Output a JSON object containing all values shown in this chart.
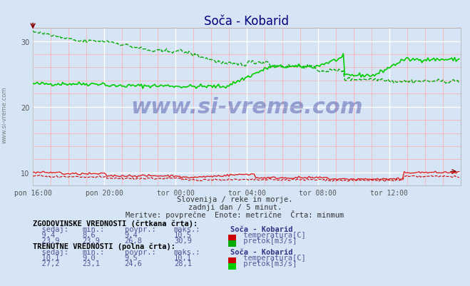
{
  "title": "Soča - Kobarid",
  "bg_color": "#d5e5f5",
  "plot_bg_color": "#d5e5f5",
  "grid_color_major": "#ffffff",
  "grid_color_minor": "#ffcccc",
  "xlabel": "",
  "ylabel": "",
  "xlim": [
    0,
    288
  ],
  "ylim": [
    8,
    32
  ],
  "yticks": [
    10,
    20,
    30
  ],
  "xtick_labels": [
    "pon 16:00",
    "pon 20:00",
    "tor 00:00",
    "tor 04:00",
    "tor 08:00",
    "tor 12:00"
  ],
  "xtick_positions": [
    0,
    48,
    96,
    144,
    192,
    240
  ],
  "title_color": "#000080",
  "title_fontsize": 12,
  "watermark_text": "www.si-vreme.com",
  "subtitle_lines": [
    "Slovenija / reke in morje.",
    "zadnji dan / 5 minut.",
    "Meritve: povprečne  Enote: metrične  Črta: minmum"
  ],
  "table_text": [
    "ZGODOVINSKE VREDNOSTI (črtkana črta):",
    "  sedaj:    min.:    povpr.:    maks.:    Soča - Kobarid",
    "  9,4      8,6      9,4      10,5    temperatura[C]",
    "  23,9     23,9     26,8     30,9    pretok[m3/s]",
    "TRENUTNE VREDNOSTI (polna črta):",
    "  sedaj:    min.:    povpr.:    maks.:    Soča - Kobarid",
    "  10,1     9,0      9,5      10,1    temperatura[C]",
    "  27,2     23,1     24,6     28,1    pretok[m3/s]"
  ],
  "green_solid_min": 23.1,
  "green_solid_avg": 24.6,
  "green_solid_max": 28.1,
  "green_solid_current": 27.2,
  "green_dashed_min": 23.9,
  "green_dashed_avg": 26.8,
  "green_dashed_max": 30.9,
  "green_dashed_current": 23.9,
  "red_solid_min": 9.0,
  "red_solid_avg": 9.5,
  "red_solid_max": 10.1,
  "red_solid_current": 10.1,
  "red_dashed_min": 8.6,
  "red_dashed_avg": 9.4,
  "red_dashed_max": 10.5,
  "red_dashed_current": 9.4
}
